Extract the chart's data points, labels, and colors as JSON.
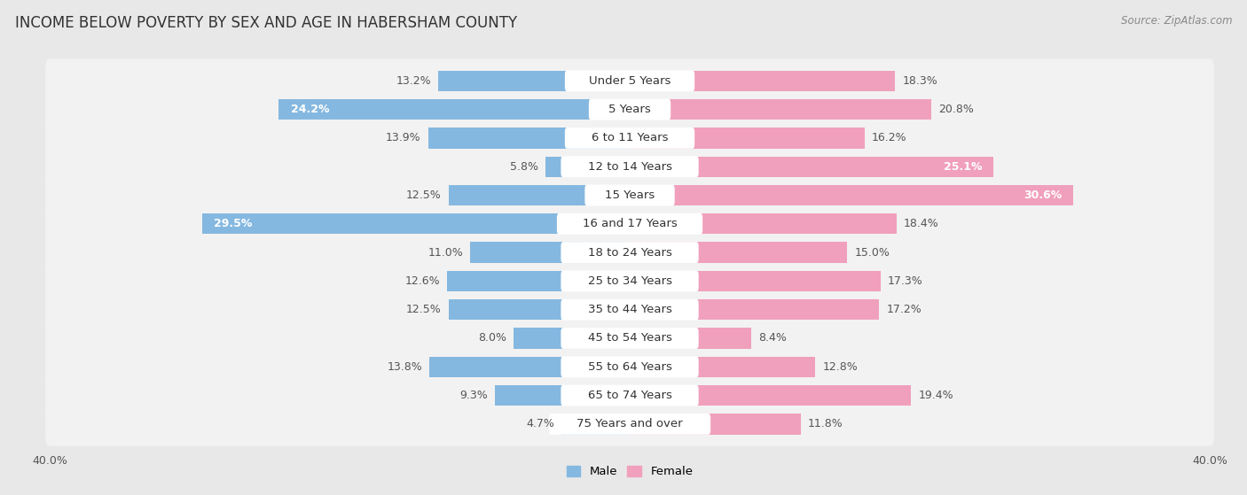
{
  "title": "INCOME BELOW POVERTY BY SEX AND AGE IN HABERSHAM COUNTY",
  "source": "Source: ZipAtlas.com",
  "categories": [
    "Under 5 Years",
    "5 Years",
    "6 to 11 Years",
    "12 to 14 Years",
    "15 Years",
    "16 and 17 Years",
    "18 to 24 Years",
    "25 to 34 Years",
    "35 to 44 Years",
    "45 to 54 Years",
    "55 to 64 Years",
    "65 to 74 Years",
    "75 Years and over"
  ],
  "male": [
    13.2,
    24.2,
    13.9,
    5.8,
    12.5,
    29.5,
    11.0,
    12.6,
    12.5,
    8.0,
    13.8,
    9.3,
    4.7
  ],
  "female": [
    18.3,
    20.8,
    16.2,
    25.1,
    30.6,
    18.4,
    15.0,
    17.3,
    17.2,
    8.4,
    12.8,
    19.4,
    11.8
  ],
  "male_color": "#85b8e0",
  "female_color": "#f0a0bc",
  "male_label": "Male",
  "female_label": "Female",
  "axis_limit": 40.0,
  "background_color": "#e8e8e8",
  "row_color_light": "#f0f0f0",
  "row_color_dark": "#e0e0e0",
  "bar_bg_color": "#ffffff",
  "title_fontsize": 12,
  "source_fontsize": 8.5,
  "label_fontsize": 9.5,
  "value_fontsize": 9,
  "tick_fontsize": 9,
  "bar_height": 0.72
}
